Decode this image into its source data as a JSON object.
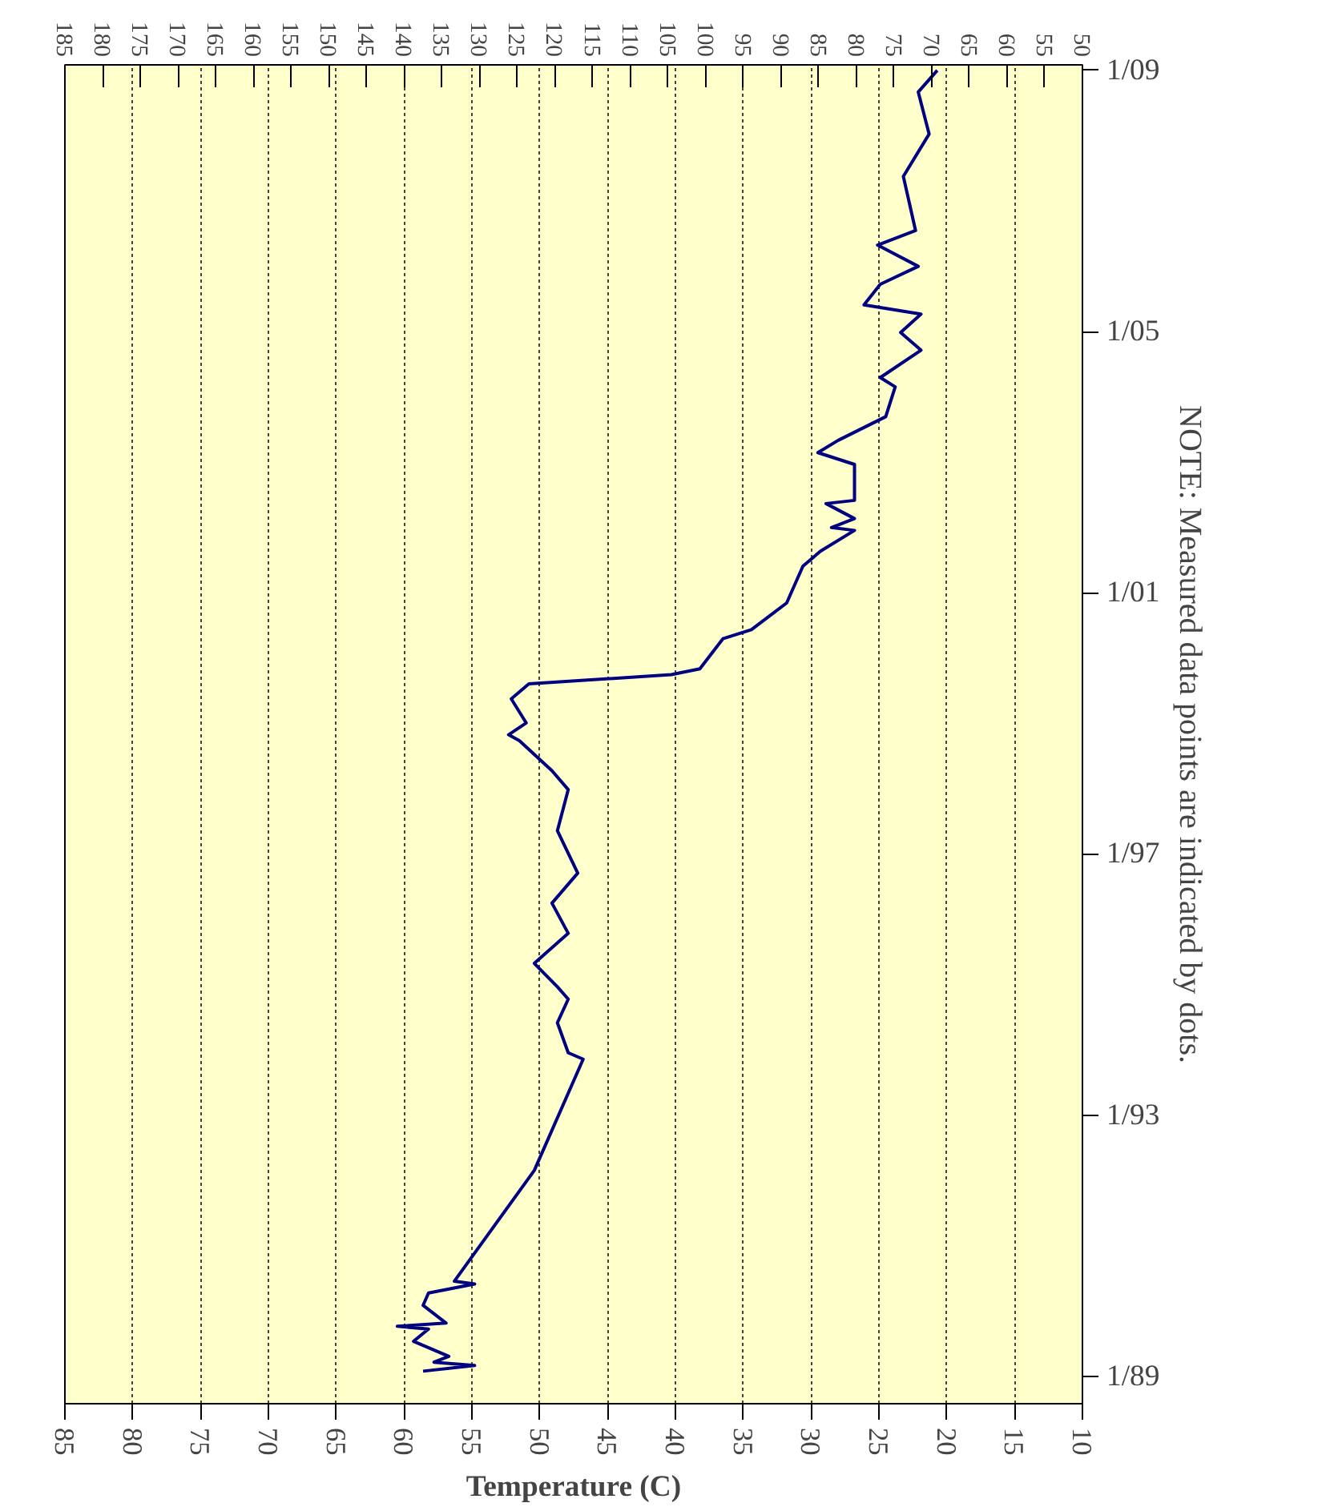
{
  "chart_data": {
    "type": "line",
    "orientation": "horizontal",
    "xlabel": "Temperature (C)",
    "annotations": [
      "NOTE: Measured data points are indicated by dots."
    ],
    "x": [
      "1989-01-30",
      "1989-03-03",
      "1989-03-21",
      "1989-04-23",
      "1989-07-16",
      "1989-09-23",
      "1989-10-08",
      "1989-10-26",
      "1990-02-02",
      "1990-04-12",
      "1990-06-02",
      "1990-06-17",
      "1992-02-27",
      "1993-11-10",
      "1993-12-16",
      "1994-06-02",
      "1994-10-12",
      "1994-12-20",
      "1995-04-30",
      "1995-10-15",
      "1996-04-01",
      "1996-09-16",
      "1997-05-11",
      "1997-12-27",
      "1998-04-12",
      "1998-09-27",
      "1998-10-30",
      "1999-01-04",
      "1999-05-19",
      "1999-08-11",
      "1999-10-01",
      "1999-11-03",
      "2000-04-19",
      "2000-06-09",
      "2000-11-05",
      "2001-05-30",
      "2001-08-22",
      "2001-12-16",
      "2002-01-01",
      "2002-02-20",
      "2002-05-15",
      "2002-06-02",
      "2002-12-20",
      "2003-02-24",
      "2003-05-04",
      "2003-09-13",
      "2004-02-27",
      "2004-04-19",
      "2004-09-19",
      "2004-12-27",
      "2005-04-09",
      "2005-05-30",
      "2005-09-23",
      "2006-01-01",
      "2006-04-30",
      "2006-07-20",
      "2007-05-19",
      "2008-01-11",
      "2008-09-02",
      "2009-01-01"
    ],
    "series": [
      {
        "color": "#000080",
        "values": [
          58.6,
          54.8,
          57.8,
          56.7,
          59.3,
          58.2,
          60.5,
          56.9,
          58.6,
          58.2,
          54.8,
          56.3,
          50.4,
          46.8,
          47.9,
          48.7,
          47.9,
          48.7,
          50.4,
          47.9,
          49.1,
          47.2,
          48.7,
          47.9,
          49.1,
          51.5,
          52.3,
          51.0,
          52.1,
          50.8,
          40.3,
          38.2,
          36.5,
          34.4,
          31.8,
          30.6,
          29.3,
          26.8,
          28.5,
          26.8,
          28.9,
          26.8,
          26.8,
          29.5,
          28.0,
          24.5,
          23.8,
          24.9,
          21.9,
          23.4,
          21.9,
          26.1,
          24.9,
          22.1,
          25.1,
          22.3,
          23.2,
          21.3,
          22.1,
          20.7
        ]
      }
    ],
    "xlim": [
      85,
      10
    ],
    "xticks": [
      85,
      80,
      75,
      70,
      65,
      60,
      55,
      50,
      45,
      40,
      35,
      30,
      25,
      20,
      15,
      10
    ],
    "x2lim": [
      185,
      50
    ],
    "x2ticks": [
      185,
      180,
      175,
      170,
      165,
      160,
      155,
      150,
      145,
      140,
      135,
      130,
      125,
      120,
      115,
      110,
      105,
      100,
      95,
      90,
      85,
      80,
      75,
      70,
      65,
      60,
      55,
      50
    ],
    "ylim": [
      "1988-08-01",
      "2009-02-01"
    ],
    "yticks": [
      {
        "value": "1989-01-01",
        "label": "1/89"
      },
      {
        "value": "1993-01-01",
        "label": "1/93"
      },
      {
        "value": "1997-01-01",
        "label": "1/97"
      },
      {
        "value": "2001-01-01",
        "label": "1/01"
      },
      {
        "value": "2005-01-01",
        "label": "1/05"
      },
      {
        "value": "2009-01-01",
        "label": "1/09"
      }
    ],
    "grid": "x",
    "line_style": "solid"
  }
}
